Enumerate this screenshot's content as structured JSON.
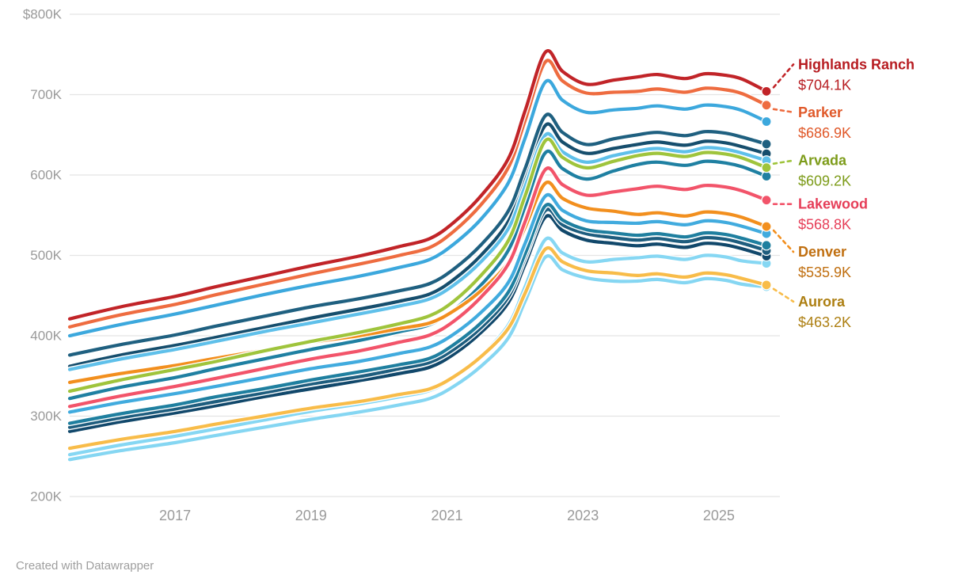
{
  "meta": {
    "footer": "Created with Datawrapper",
    "background_color": "#ffffff",
    "gridline_color": "#e4e4e4",
    "axis_label_color": "#9a9a9a"
  },
  "y_axis": {
    "ticks": [
      {
        "value": 800,
        "label": "$800K"
      },
      {
        "value": 700,
        "label": "700K"
      },
      {
        "value": 600,
        "label": "600K"
      },
      {
        "value": 500,
        "label": "500K"
      },
      {
        "value": 400,
        "label": "400K"
      },
      {
        "value": 300,
        "label": "300K"
      },
      {
        "value": 200,
        "label": "200K"
      }
    ],
    "range": [
      200,
      800
    ]
  },
  "x_axis": {
    "ticks": [
      {
        "value": 2017,
        "label": "2017"
      },
      {
        "value": 2019,
        "label": "2019"
      },
      {
        "value": 2021,
        "label": "2021"
      },
      {
        "value": 2023,
        "label": "2023"
      },
      {
        "value": 2025,
        "label": "2025"
      }
    ],
    "range": [
      2015.45,
      2025.7
    ]
  },
  "chart_data": {
    "type": "line",
    "unit": "thousand US dollars",
    "x": [
      2015.45,
      2016.2,
      2017.0,
      2017.6,
      2018.3,
      2019.0,
      2019.7,
      2020.3,
      2020.75,
      2021.1,
      2021.5,
      2021.9,
      2022.15,
      2022.45,
      2022.7,
      2023.05,
      2023.45,
      2023.8,
      2024.1,
      2024.5,
      2024.8,
      2025.1,
      2025.35,
      2025.7
    ],
    "series": [
      {
        "name": "unlabeled-cyan-2",
        "labeled": false,
        "color": "#86d7f3",
        "values": [
          252,
          264,
          275,
          284,
          295,
          306,
          315,
          324,
          332,
          348,
          375,
          413,
          461,
          520,
          503,
          492,
          495,
          497,
          499,
          495,
          500,
          498,
          493,
          490
        ]
      },
      {
        "name": "unlabeled-navy-4",
        "labeled": false,
        "color": "#11486b",
        "values": [
          281,
          293,
          304,
          313,
          324,
          334,
          344,
          353,
          361,
          377,
          404,
          441,
          489,
          548,
          531,
          519,
          515,
          512,
          514,
          510,
          515,
          513,
          508,
          499
        ]
      },
      {
        "name": "unlabeled-navy-3",
        "labeled": false,
        "color": "#1e5d7e",
        "values": [
          286,
          298,
          309,
          318,
          329,
          340,
          349,
          359,
          367,
          383,
          410,
          448,
          497,
          556,
          538,
          527,
          522,
          519,
          521,
          517,
          522,
          520,
          515,
          506
        ]
      },
      {
        "name": "unlabeled-teal-2",
        "labeled": false,
        "color": "#1f7f9f",
        "values": [
          291,
          303,
          314,
          324,
          334,
          345,
          355,
          364,
          372,
          389,
          416,
          454,
          502,
          562,
          544,
          532,
          528,
          525,
          527,
          523,
          528,
          526,
          521,
          512.5
        ]
      },
      {
        "name": "unlabeled-sky-2",
        "labeled": false,
        "color": "#41abde",
        "values": [
          305,
          317,
          328,
          337,
          348,
          359,
          368,
          378,
          386,
          402,
          429,
          466,
          515,
          574,
          556,
          543,
          541,
          540,
          542,
          538,
          543,
          541,
          536,
          527
        ]
      },
      {
        "name": "unlabeled-navy-2",
        "labeled": false,
        "color": "#164e6d",
        "values": [
          362,
          376,
          388,
          398,
          410,
          422,
          433,
          443,
          452,
          470,
          500,
          542,
          596,
          662,
          641,
          627,
          633,
          638,
          641,
          637,
          642,
          640,
          635,
          626.5
        ]
      },
      {
        "name": "unlabeled-navy-1",
        "labeled": false,
        "color": "#1f6080",
        "values": [
          376,
          389,
          401,
          412,
          424,
          436,
          446,
          456,
          465,
          483,
          513,
          555,
          608,
          674,
          653,
          638,
          645,
          650,
          653,
          649,
          654,
          652,
          647,
          638.5
        ]
      },
      {
        "name": "unlabeled-lightblue-1",
        "labeled": false,
        "color": "#5fc0ea",
        "values": [
          358,
          371,
          383,
          393,
          405,
          416,
          427,
          437,
          446,
          463,
          492,
          533,
          586,
          650,
          629,
          616,
          624,
          630,
          633,
          629,
          634,
          632,
          627,
          618
        ]
      },
      {
        "name": "unlabeled-teal-1",
        "labeled": false,
        "color": "#1f80a2",
        "values": [
          322,
          336,
          348,
          359,
          371,
          383,
          394,
          405,
          414,
          432,
          463,
          506,
          561,
          628,
          608,
          595,
          605,
          613,
          616,
          612,
          617,
          615,
          610,
          598.5
        ]
      },
      {
        "name": "unlabeled-sky-1",
        "labeled": false,
        "color": "#3ca8dd",
        "values": [
          400,
          414,
          427,
          438,
          451,
          463,
          474,
          485,
          495,
          514,
          545,
          590,
          646,
          716,
          693,
          678,
          681,
          683,
          686,
          682,
          687,
          685,
          680,
          666.5
        ]
      },
      {
        "name": "unlabeled-cyan-1",
        "labeled": false,
        "color": "#85d6f2",
        "values": [
          246,
          257,
          267,
          276,
          286,
          296,
          305,
          314,
          322,
          337,
          362,
          397,
          443,
          498,
          482,
          472,
          468,
          468,
          470,
          466,
          471,
          469,
          464,
          461
        ]
      },
      {
        "name": "Aurora",
        "labeled": true,
        "color": "#f8bc49",
        "label_color": "#ad7f12",
        "end_label_value": "$463.2K",
        "label_dy": 21,
        "values": [
          260,
          271,
          281,
          290,
          300,
          310,
          318,
          327,
          334,
          349,
          374,
          409,
          453,
          508,
          492,
          481,
          478,
          475,
          477,
          473,
          478,
          476,
          471,
          463.2
        ]
      },
      {
        "name": "Denver",
        "labeled": true,
        "color": "#f28f1e",
        "label_color": "#c06f10",
        "end_label_value": "$535.9K",
        "label_dy": 32,
        "values": [
          342,
          353,
          363,
          372,
          382,
          392,
          400,
          409,
          416,
          431,
          456,
          491,
          535,
          590,
          571,
          559,
          555,
          551,
          553,
          549,
          554,
          552,
          547,
          535.9
        ]
      },
      {
        "name": "Lakewood",
        "labeled": true,
        "color": "#f2546a",
        "label_color": "#e63e58",
        "end_label_value": "$568.8K",
        "label_dy": 5,
        "values": [
          312,
          325,
          337,
          347,
          359,
          371,
          381,
          392,
          401,
          418,
          448,
          489,
          542,
          607,
          588,
          575,
          579,
          583,
          586,
          582,
          587,
          585,
          580,
          568.8
        ]
      },
      {
        "name": "Arvada",
        "labeled": true,
        "color": "#9fc43c",
        "label_color": "#7d9c1a",
        "end_label_value": "$609.2K",
        "label_dy": -9,
        "values": [
          331,
          345,
          358,
          368,
          381,
          393,
          404,
          415,
          425,
          443,
          475,
          518,
          574,
          643,
          622,
          609,
          617,
          624,
          627,
          623,
          628,
          626,
          621,
          609.2
        ]
      },
      {
        "name": "Parker",
        "labeled": true,
        "color": "#ee6c40",
        "label_color": "#e0592a",
        "end_label_value": "$686.9K",
        "label_dy": 9,
        "values": [
          411,
          426,
          439,
          451,
          464,
          477,
          489,
          500,
          510,
          530,
          563,
          609,
          668,
          741,
          717,
          702,
          703,
          704,
          707,
          703,
          708,
          706,
          701,
          686.9
        ]
      },
      {
        "name": "Highlands Ranch",
        "labeled": true,
        "color": "#c12428",
        "label_color": "#b71c21",
        "end_label_value": "$704.1K",
        "label_dy": -34,
        "values": [
          421,
          436,
          449,
          461,
          474,
          487,
          499,
          511,
          521,
          541,
          574,
          620,
          680,
          753,
          729,
          713,
          718,
          722,
          725,
          720,
          726,
          724,
          719,
          704.1
        ]
      }
    ]
  }
}
